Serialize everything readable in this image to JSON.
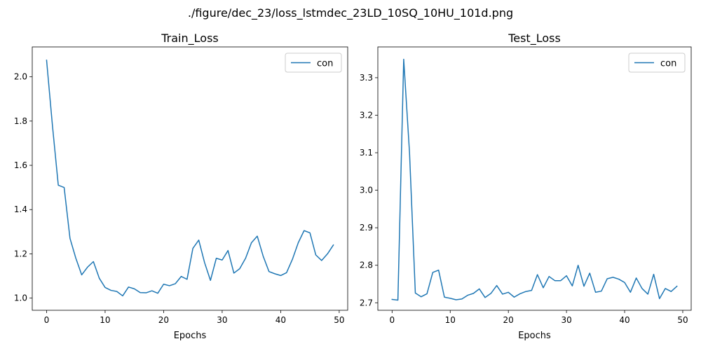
{
  "figure": {
    "suptitle": "./figure/dec_23/loss_lstmdec_23LD_10SQ_10HU_101d.png"
  },
  "colors": {
    "series": "#1f77b4",
    "axes": "#000000",
    "legend_border": "#cccccc",
    "background": "#ffffff"
  },
  "chart_data": [
    {
      "type": "line",
      "title": "Train_Loss",
      "xlabel": "Epochs",
      "ylabel": "",
      "xlim": [
        -2.45,
        51.45
      ],
      "ylim": [
        0.945,
        2.135
      ],
      "xticks": [
        0,
        10,
        20,
        30,
        40,
        50
      ],
      "yticks": [
        1.0,
        1.2,
        1.4,
        1.6,
        1.8,
        2.0
      ],
      "ytick_decimals": 1,
      "grid": false,
      "legend": {
        "position": "top-right",
        "entries": [
          "con"
        ]
      },
      "series": [
        {
          "name": "con",
          "x": [
            0,
            1,
            2,
            3,
            4,
            5,
            6,
            7,
            8,
            9,
            10,
            11,
            12,
            13,
            14,
            15,
            16,
            17,
            18,
            19,
            20,
            21,
            22,
            23,
            24,
            25,
            26,
            27,
            28,
            29,
            30,
            31,
            32,
            33,
            34,
            35,
            36,
            37,
            38,
            39,
            40,
            41,
            42,
            43,
            44,
            45,
            46,
            47,
            48,
            49
          ],
          "values": [
            2.075,
            1.78,
            1.51,
            1.5,
            1.27,
            1.18,
            1.105,
            1.14,
            1.165,
            1.09,
            1.048,
            1.035,
            1.03,
            1.01,
            1.05,
            1.042,
            1.025,
            1.024,
            1.033,
            1.022,
            1.063,
            1.056,
            1.065,
            1.098,
            1.085,
            1.225,
            1.262,
            1.16,
            1.08,
            1.18,
            1.172,
            1.215,
            1.113,
            1.133,
            1.18,
            1.25,
            1.28,
            1.19,
            1.12,
            1.11,
            1.102,
            1.115,
            1.175,
            1.25,
            1.305,
            1.295,
            1.195,
            1.17,
            1.2,
            1.24
          ]
        }
      ]
    },
    {
      "type": "line",
      "title": "Test_Loss",
      "xlabel": "Epochs",
      "ylabel": "",
      "xlim": [
        -2.45,
        51.45
      ],
      "ylim": [
        2.68,
        3.382
      ],
      "xticks": [
        0,
        10,
        20,
        30,
        40,
        50
      ],
      "yticks": [
        2.7,
        2.8,
        2.9,
        3.0,
        3.1,
        3.2,
        3.3
      ],
      "ytick_decimals": 1,
      "grid": false,
      "legend": {
        "position": "top-right",
        "entries": [
          "con"
        ]
      },
      "series": [
        {
          "name": "con",
          "x": [
            0,
            1,
            2,
            3,
            4,
            5,
            6,
            7,
            8,
            9,
            10,
            11,
            12,
            13,
            14,
            15,
            16,
            17,
            18,
            19,
            20,
            21,
            22,
            23,
            24,
            25,
            26,
            27,
            28,
            29,
            30,
            31,
            32,
            33,
            34,
            35,
            36,
            37,
            38,
            39,
            40,
            41,
            42,
            43,
            44,
            45,
            46,
            47,
            48,
            49
          ],
          "values": [
            2.709,
            2.707,
            3.349,
            3.1,
            2.726,
            2.716,
            2.724,
            2.781,
            2.787,
            2.715,
            2.712,
            2.708,
            2.71,
            2.72,
            2.725,
            2.737,
            2.714,
            2.725,
            2.746,
            2.723,
            2.728,
            2.715,
            2.724,
            2.73,
            2.733,
            2.775,
            2.74,
            2.77,
            2.759,
            2.759,
            2.772,
            2.745,
            2.8,
            2.744,
            2.779,
            2.728,
            2.731,
            2.764,
            2.768,
            2.763,
            2.754,
            2.728,
            2.766,
            2.738,
            2.723,
            2.776,
            2.711,
            2.738,
            2.73,
            2.744
          ]
        }
      ]
    }
  ]
}
